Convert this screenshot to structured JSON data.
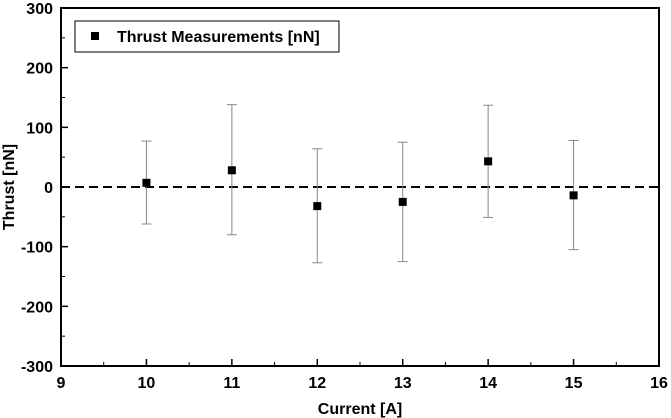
{
  "chart_data": {
    "type": "scatter",
    "xlabel": "Current [A]",
    "ylabel": "Thrust [nN]",
    "xlim": [
      9,
      16
    ],
    "ylim": [
      -300,
      300
    ],
    "xticks": [
      "9",
      "10",
      "11",
      "12",
      "13",
      "14",
      "15",
      "16"
    ],
    "yticks": [
      "-300",
      "-200",
      "-100",
      "0",
      "100",
      "200",
      "300"
    ],
    "legend_position": "top-left",
    "grid": false,
    "reference_line": {
      "y": 0,
      "style": "dashed"
    },
    "series": [
      {
        "name": "Thrust Measurements [nN]",
        "x": [
          10,
          11,
          12,
          13,
          14,
          15
        ],
        "y": [
          7,
          28,
          -32,
          -25,
          43,
          -14
        ],
        "error_low": [
          -62,
          -80,
          -127,
          -125,
          -51,
          -105
        ],
        "error_high": [
          77,
          138,
          64,
          75,
          137,
          78
        ],
        "color": "#000000",
        "marker": "square"
      }
    ],
    "colors": {
      "axis": "#000000",
      "error_bar": "#888888",
      "marker": "#000000",
      "reference_line": "#000000"
    }
  }
}
